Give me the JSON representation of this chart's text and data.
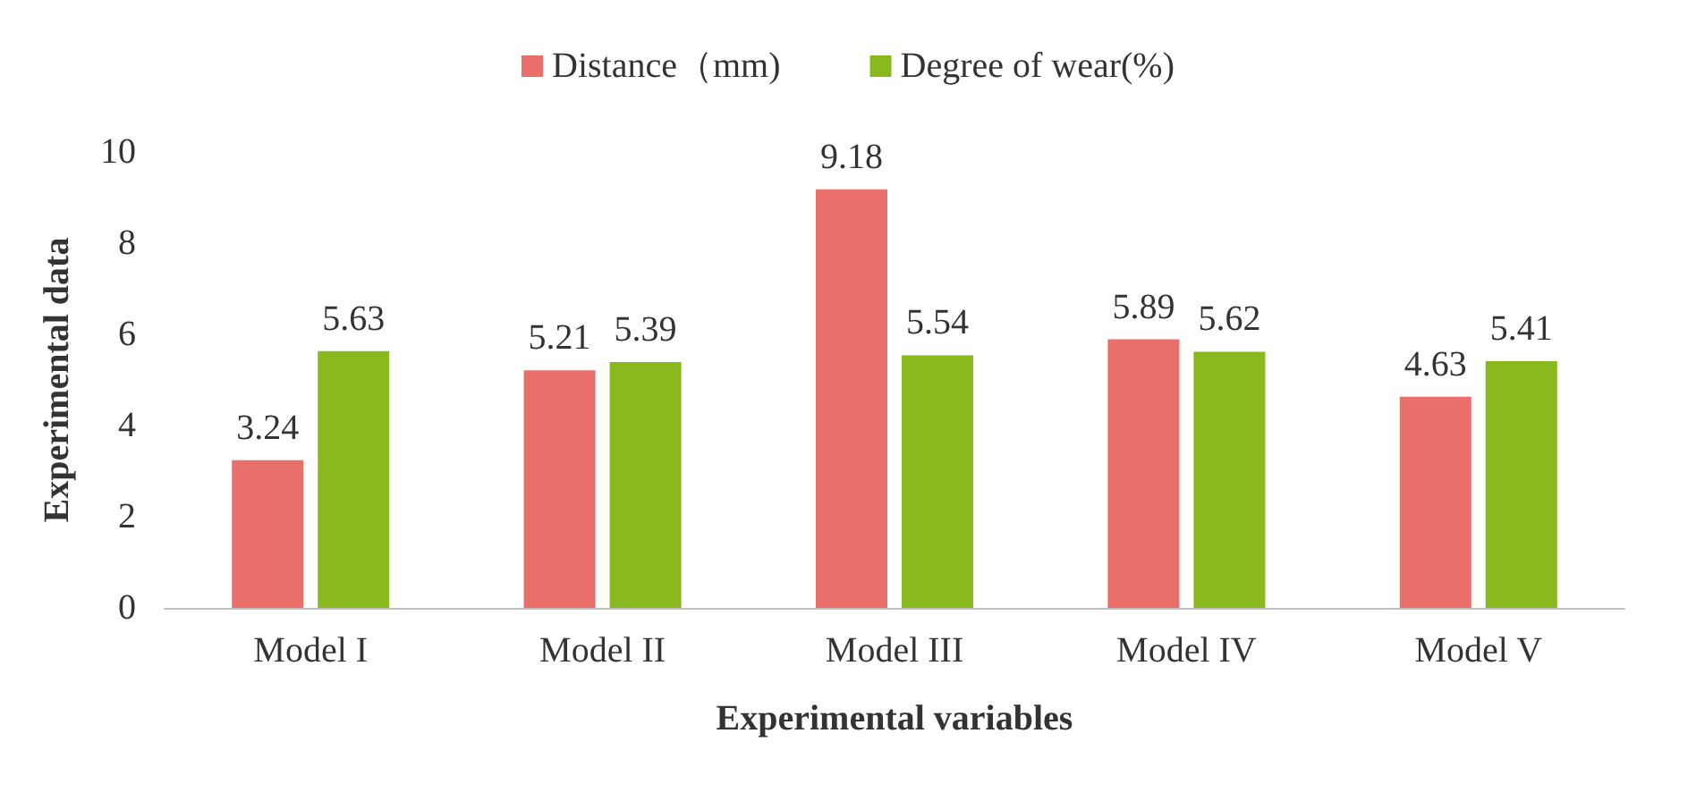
{
  "chart_data": {
    "type": "bar",
    "xlabel": "Experimental variables",
    "ylabel": "Experimental data",
    "categories": [
      "Model I",
      "Model II",
      "Model III",
      "Model IV",
      "Model V"
    ],
    "series": [
      {
        "name": "Distance（mm)",
        "color": "#e9706a",
        "values": [
          3.24,
          5.21,
          9.18,
          5.89,
          4.63
        ]
      },
      {
        "name": "Degree of wear(%)",
        "color": "#8ab81f",
        "values": [
          5.63,
          5.39,
          5.54,
          5.62,
          5.41
        ]
      }
    ],
    "ylim": [
      0,
      10
    ],
    "yticks": [
      0,
      2,
      4,
      6,
      8,
      10
    ],
    "grid": false,
    "legend": "top",
    "data_labels": true
  }
}
